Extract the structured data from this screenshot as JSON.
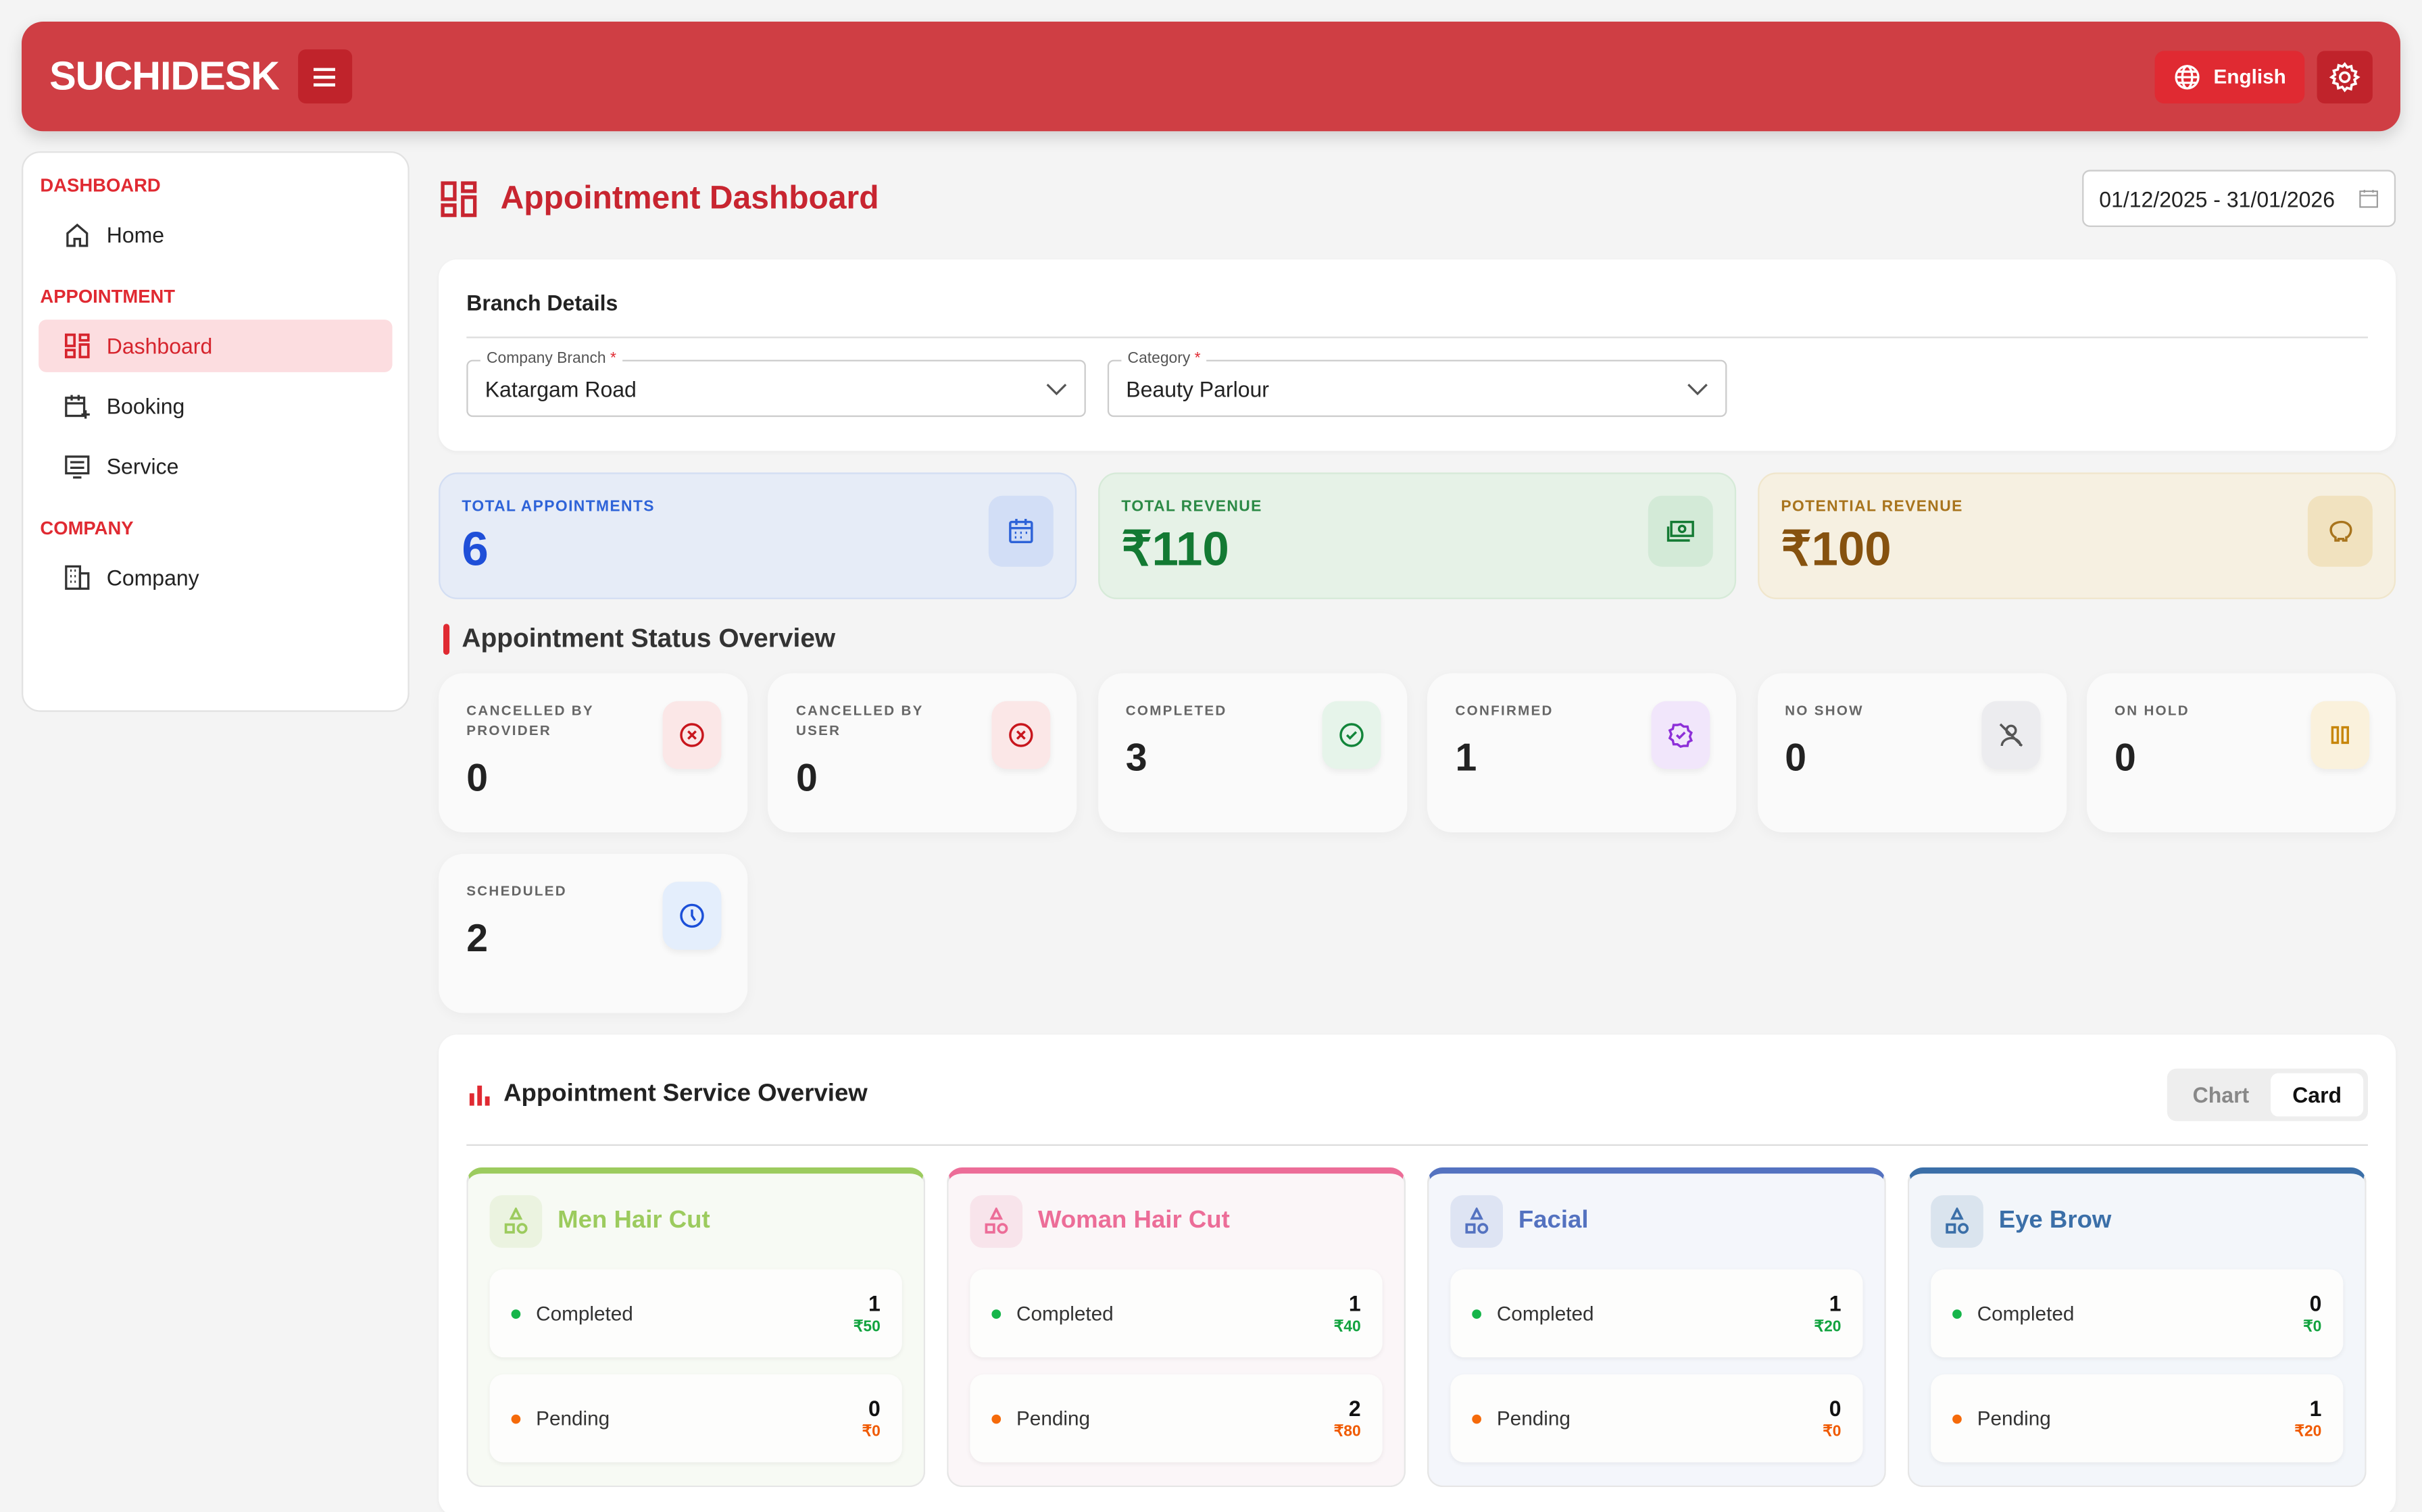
{
  "header": {
    "logo": "SUCHIDESK",
    "language": "English"
  },
  "sidebar": {
    "sections": [
      {
        "title": "DASHBOARD",
        "items": [
          {
            "label": "Home"
          }
        ]
      },
      {
        "title": "APPOINTMENT",
        "items": [
          {
            "label": "Dashboard"
          },
          {
            "label": "Booking"
          },
          {
            "label": "Service"
          }
        ]
      },
      {
        "title": "COMPANY",
        "items": [
          {
            "label": "Company"
          }
        ]
      }
    ]
  },
  "page": {
    "title": "Appointment Dashboard",
    "date_range": "01/12/2025 - 31/01/2026"
  },
  "branch": {
    "title": "Branch Details",
    "company_branch_label": "Company Branch",
    "company_branch_value": "Katargam Road",
    "category_label": "Category",
    "category_value": "Beauty Parlour",
    "required": "*"
  },
  "kpis": [
    {
      "label": "TOTAL APPOINTMENTS",
      "value": "6"
    },
    {
      "label": "TOTAL REVENUE",
      "value": "₹110"
    },
    {
      "label": "POTENTIAL REVENUE",
      "value": "₹100"
    }
  ],
  "status": {
    "title": "Appointment Status Overview",
    "items": [
      {
        "label": "CANCELLED BY PROVIDER",
        "value": "0"
      },
      {
        "label": "CANCELLED BY USER",
        "value": "0"
      },
      {
        "label": "COMPLETED",
        "value": "3"
      },
      {
        "label": "CONFIRMED",
        "value": "1"
      },
      {
        "label": "NO SHOW",
        "value": "0"
      },
      {
        "label": "ON HOLD",
        "value": "0"
      },
      {
        "label": "SCHEDULED",
        "value": "2"
      }
    ]
  },
  "services": {
    "title": "Appointment Service Overview",
    "toggle": [
      "Chart",
      "Card"
    ],
    "cards": [
      {
        "name": "Men Hair Cut",
        "color": "#9ccb5e",
        "completed": "1",
        "completed_amt": "₹50",
        "pending": "0",
        "pending_amt": "₹0"
      },
      {
        "name": "Woman Hair Cut",
        "color": "#ec6d98",
        "completed": "1",
        "completed_amt": "₹40",
        "pending": "2",
        "pending_amt": "₹80"
      },
      {
        "name": "Facial",
        "color": "#5472c0",
        "completed": "1",
        "completed_amt": "₹20",
        "pending": "0",
        "pending_amt": "₹0"
      },
      {
        "name": "Eye Brow",
        "color": "#3b6fa8",
        "completed": "0",
        "completed_amt": "₹0",
        "pending": "1",
        "pending_amt": "₹20"
      }
    ],
    "completed_label": "Completed",
    "pending_label": "Pending"
  }
}
